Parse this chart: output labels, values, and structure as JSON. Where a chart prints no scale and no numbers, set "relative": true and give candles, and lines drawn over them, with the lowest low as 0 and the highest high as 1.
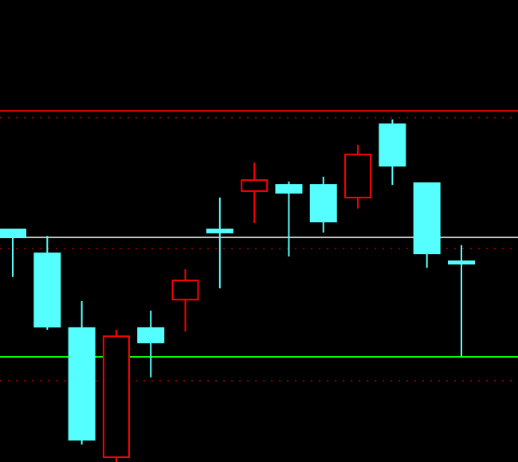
{
  "chart_data": {
    "type": "candlestick",
    "relative": true,
    "categories": [
      null,
      null,
      null,
      null,
      null,
      null,
      null,
      null,
      null,
      null,
      null,
      null,
      null,
      null
    ],
    "ohlc": [
      [
        0.679,
        0.679,
        0.54,
        0.656
      ],
      [
        0.609,
        0.66,
        0.386,
        0.395
      ],
      [
        0.391,
        0.47,
        0.051,
        0.065
      ],
      [
        0.014,
        0.386,
        0,
        0.367
      ],
      [
        0.391,
        0.442,
        0.247,
        0.349
      ],
      [
        0.474,
        0.563,
        0.381,
        0.53
      ],
      [
        0.679,
        0.772,
        0.507,
        0.67
      ],
      [
        0.791,
        0.874,
        0.698,
        0.823
      ],
      [
        0.809,
        0.819,
        0.6,
        0.786
      ],
      [
        0.809,
        0.833,
        0.67,
        0.702
      ],
      [
        0.772,
        0.926,
        0.74,
        0.898
      ],
      [
        0.986,
        1,
        0.809,
        0.865
      ],
      [
        0.814,
        0.814,
        0.567,
        0.609
      ],
      [
        0.586,
        0.633,
        0.307,
        0.586
      ]
    ],
    "colors": [
      "#55ffff",
      "#55ffff",
      "#55ffff",
      "#ff0000",
      "#55ffff",
      "#ff0000",
      "#55ffff",
      "#ff0000",
      "#55ffff",
      "#55ffff",
      "#ff0000",
      "#55ffff",
      "#55ffff",
      "#55ffff"
    ],
    "ref_lines": [
      {
        "axis": "y",
        "value": 1.025,
        "color": "#ff0000",
        "line_style": "solid"
      },
      {
        "axis": "y",
        "value": 1.005,
        "color": "#800000",
        "line_style": "dotted"
      },
      {
        "axis": "y",
        "value": 0.656,
        "color": "#c0c0c0",
        "line_style": "solid"
      },
      {
        "axis": "y",
        "value": 0.623,
        "color": "#800000",
        "line_style": "dotted"
      },
      {
        "axis": "y",
        "value": 0.307,
        "color": "#00ff00",
        "line_style": "solid"
      },
      {
        "axis": "y",
        "value": 0.237,
        "color": "#800000",
        "line_style": "dotted"
      }
    ]
  }
}
